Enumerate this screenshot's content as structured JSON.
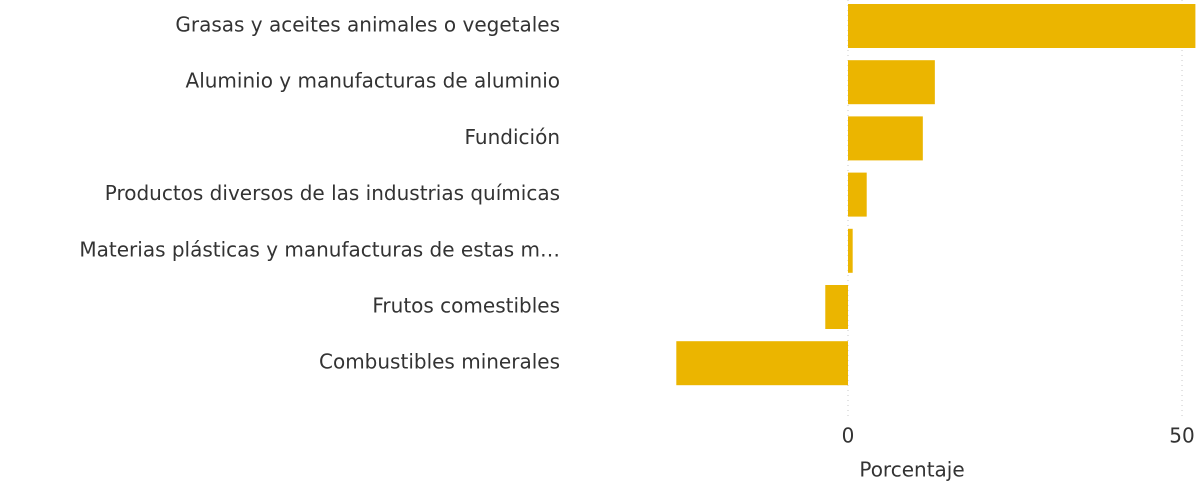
{
  "chart_data": {
    "type": "barh",
    "categories": [
      "Grasas y aceites animales o vegetales",
      "Aluminio y manufacturas de aluminio",
      "Fundición",
      "Productos diversos de las industrias químicas",
      "Materias plásticas y manufacturas de estas m…",
      "Frutos comestibles",
      "Combustibles minerales"
    ],
    "values": [
      52,
      13.0,
      11.2,
      2.8,
      0.7,
      -3.4,
      -25.7
    ],
    "color": "#ebb500",
    "xlim": [
      -26,
      52
    ],
    "xticks": [
      0,
      50
    ],
    "grid": true,
    "xlabel": "Porcentaje"
  }
}
